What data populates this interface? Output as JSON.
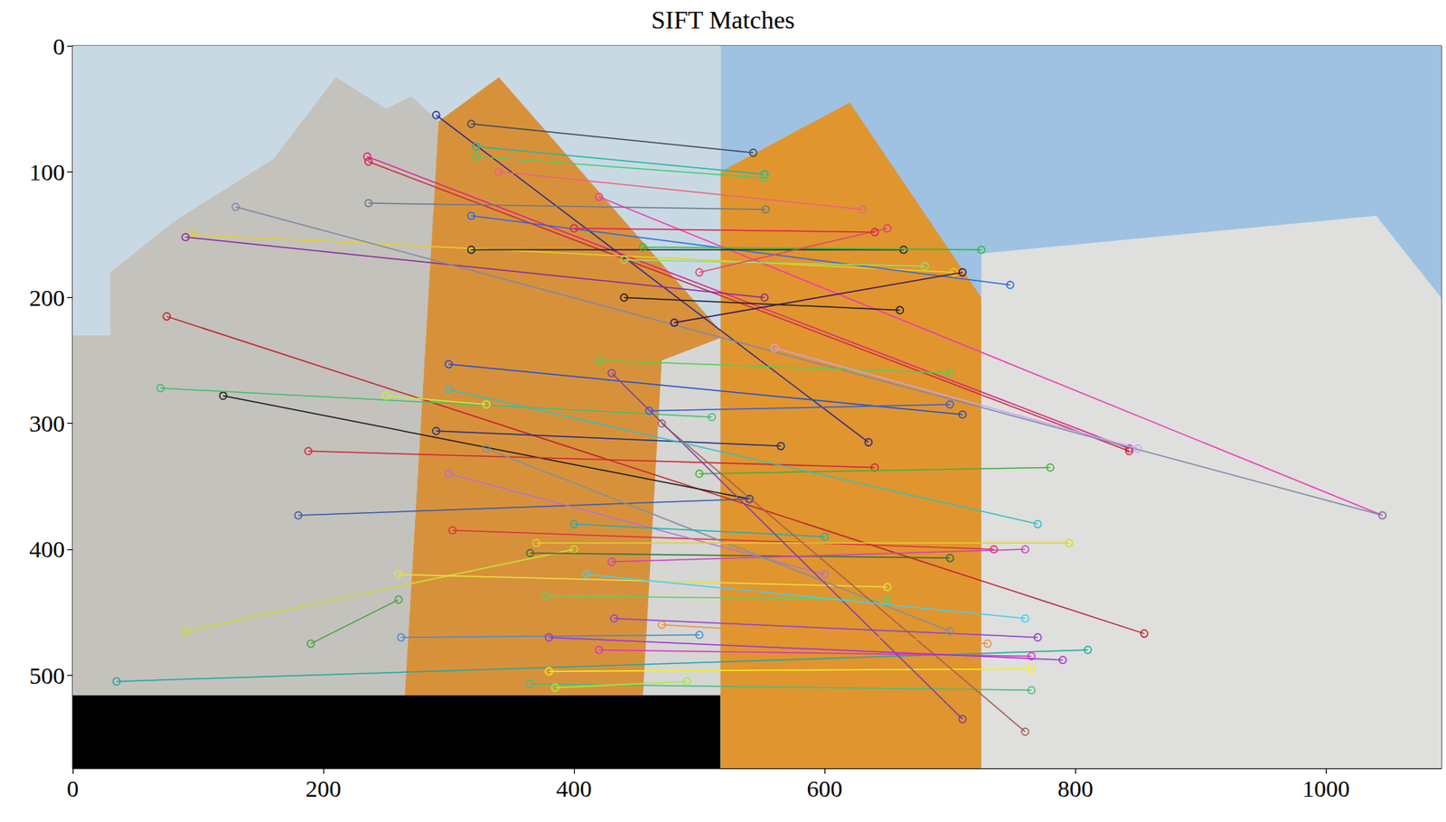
{
  "chart_data": {
    "type": "image_matches",
    "title": "SIFT Matches",
    "xlim": [
      0,
      1092
    ],
    "ylim": [
      574,
      0
    ],
    "xticks": [
      0,
      200,
      400,
      600,
      800,
      1000
    ],
    "yticks": [
      0,
      100,
      200,
      300,
      400,
      500
    ],
    "grid": false,
    "marker": "circle",
    "regions": [
      {
        "color": "#c9d9e4",
        "points": [
          [
            0,
            0
          ],
          [
            517,
            0
          ],
          [
            517,
            516
          ],
          [
            0,
            516
          ]
        ]
      },
      {
        "color": "#c4c2bc",
        "points": [
          [
            0,
            230
          ],
          [
            30,
            230
          ],
          [
            30,
            180
          ],
          [
            80,
            140
          ],
          [
            160,
            90
          ],
          [
            210,
            25
          ],
          [
            250,
            50
          ],
          [
            270,
            40
          ],
          [
            292,
            60
          ],
          [
            265,
            516
          ],
          [
            0,
            516
          ]
        ]
      },
      {
        "color": "#d8913b",
        "points": [
          [
            265,
            516
          ],
          [
            292,
            60
          ],
          [
            340,
            25
          ],
          [
            520,
            230
          ],
          [
            517,
            516
          ]
        ]
      },
      {
        "color": "#d6d6d4",
        "points": [
          [
            470,
            250
          ],
          [
            517,
            232
          ],
          [
            517,
            516
          ],
          [
            455,
            516
          ]
        ]
      },
      {
        "color": "#000000",
        "points": [
          [
            0,
            516
          ],
          [
            517,
            516
          ],
          [
            517,
            574
          ],
          [
            0,
            574
          ]
        ]
      },
      {
        "color": "#9fc2e2",
        "points": [
          [
            517,
            0
          ],
          [
            1092,
            0
          ],
          [
            1092,
            574
          ],
          [
            517,
            574
          ]
        ]
      },
      {
        "color": "#e0952f",
        "points": [
          [
            517,
            100
          ],
          [
            620,
            45
          ],
          [
            725,
            200
          ],
          [
            725,
            574
          ],
          [
            517,
            574
          ]
        ]
      },
      {
        "color": "#dfdfdd",
        "points": [
          [
            725,
            165
          ],
          [
            1040,
            135
          ],
          [
            1092,
            200
          ],
          [
            1092,
            574
          ],
          [
            725,
            574
          ]
        ]
      }
    ],
    "matches": [
      {
        "x": [
          318,
          543
        ],
        "y": [
          62,
          85
        ],
        "color": "#3d4a5c"
      },
      {
        "x": [
          290,
          635
        ],
        "y": [
          55,
          315
        ],
        "color": "#2a2a8a"
      },
      {
        "x": [
          322,
          552
        ],
        "y": [
          80,
          102
        ],
        "color": "#1fb8a0"
      },
      {
        "x": [
          322,
          552
        ],
        "y": [
          88,
          105
        ],
        "color": "#3fd06a"
      },
      {
        "x": [
          235,
          843
        ],
        "y": [
          88,
          320
        ],
        "color": "#e0208a"
      },
      {
        "x": [
          236,
          843
        ],
        "y": [
          92,
          322
        ],
        "color": "#c8283a"
      },
      {
        "x": [
          236,
          553
        ],
        "y": [
          125,
          130
        ],
        "color": "#6a7a8a"
      },
      {
        "x": [
          95,
          703
        ],
        "y": [
          150,
          180
        ],
        "color": "#e8d020"
      },
      {
        "x": [
          90,
          552
        ],
        "y": [
          152,
          200
        ],
        "color": "#8a2aa0"
      },
      {
        "x": [
          420,
          1045
        ],
        "y": [
          120,
          373
        ],
        "color": "#f03ab0"
      },
      {
        "x": [
          130,
          1045
        ],
        "y": [
          128,
          373
        ],
        "color": "#7a8aa8"
      },
      {
        "x": [
          318,
          748
        ],
        "y": [
          135,
          190
        ],
        "color": "#2a6ae0"
      },
      {
        "x": [
          318,
          663
        ],
        "y": [
          162,
          162
        ],
        "color": "#1a2a2a"
      },
      {
        "x": [
          75,
          855
        ],
        "y": [
          215,
          467
        ],
        "color": "#c02030"
      },
      {
        "x": [
          120,
          540
        ],
        "y": [
          278,
          360
        ],
        "color": "#1a1a1a"
      },
      {
        "x": [
          70,
          510
        ],
        "y": [
          272,
          295
        ],
        "color": "#40c070"
      },
      {
        "x": [
          188,
          640
        ],
        "y": [
          322,
          335
        ],
        "color": "#d02838"
      },
      {
        "x": [
          180,
          540
        ],
        "y": [
          373,
          360
        ],
        "color": "#3a5ab0"
      },
      {
        "x": [
          90,
          400
        ],
        "y": [
          465,
          400
        ],
        "color": "#c8e030"
      },
      {
        "x": [
          35,
          810
        ],
        "y": [
          505,
          480
        ],
        "color": "#20a8a0"
      },
      {
        "x": [
          190,
          260
        ],
        "y": [
          475,
          440
        ],
        "color": "#50a050"
      },
      {
        "x": [
          300,
          710
        ],
        "y": [
          253,
          293
        ],
        "color": "#2050d0"
      },
      {
        "x": [
          290,
          565
        ],
        "y": [
          306,
          318
        ],
        "color": "#203080"
      },
      {
        "x": [
          303,
          735
        ],
        "y": [
          385,
          400
        ],
        "color": "#e03040"
      },
      {
        "x": [
          260,
          650
        ],
        "y": [
          420,
          430
        ],
        "color": "#e8e040"
      },
      {
        "x": [
          262,
          500
        ],
        "y": [
          470,
          468
        ],
        "color": "#4a8ad0"
      },
      {
        "x": [
          365,
          700
        ],
        "y": [
          403,
          407
        ],
        "color": "#307040"
      },
      {
        "x": [
          378,
          650
        ],
        "y": [
          437,
          440
        ],
        "color": "#60d060"
      },
      {
        "x": [
          380,
          765
        ],
        "y": [
          497,
          495
        ],
        "color": "#f0f020"
      },
      {
        "x": [
          365,
          765
        ],
        "y": [
          507,
          512
        ],
        "color": "#40c080"
      },
      {
        "x": [
          385,
          490
        ],
        "y": [
          510,
          505
        ],
        "color": "#a0f040"
      },
      {
        "x": [
          430,
          760
        ],
        "y": [
          410,
          400
        ],
        "color": "#d040c0"
      },
      {
        "x": [
          432,
          770
        ],
        "y": [
          455,
          470
        ],
        "color": "#9040d0"
      },
      {
        "x": [
          300,
          600
        ],
        "y": [
          340,
          420
        ],
        "color": "#b070e0"
      },
      {
        "x": [
          440,
          660
        ],
        "y": [
          200,
          210
        ],
        "color": "#202020"
      },
      {
        "x": [
          480,
          710
        ],
        "y": [
          220,
          180
        ],
        "color": "#301060"
      },
      {
        "x": [
          455,
          725
        ],
        "y": [
          160,
          162
        ],
        "color": "#20c040"
      },
      {
        "x": [
          440,
          680
        ],
        "y": [
          170,
          175
        ],
        "color": "#90e070"
      },
      {
        "x": [
          500,
          650
        ],
        "y": [
          180,
          145
        ],
        "color": "#e04070"
      },
      {
        "x": [
          460,
          700
        ],
        "y": [
          290,
          285
        ],
        "color": "#3060e0"
      },
      {
        "x": [
          420,
          700
        ],
        "y": [
          250,
          260
        ],
        "color": "#50d050"
      },
      {
        "x": [
          330,
          700
        ],
        "y": [
          320,
          465
        ],
        "color": "#8090a0"
      },
      {
        "x": [
          400,
          600
        ],
        "y": [
          380,
          390
        ],
        "color": "#20b0b0"
      },
      {
        "x": [
          420,
          765
        ],
        "y": [
          480,
          485
        ],
        "color": "#e030c0"
      },
      {
        "x": [
          500,
          780
        ],
        "y": [
          340,
          335
        ],
        "color": "#40b040"
      },
      {
        "x": [
          370,
          795
        ],
        "y": [
          395,
          395
        ],
        "color": "#e0d030"
      },
      {
        "x": [
          470,
          760
        ],
        "y": [
          300,
          545
        ],
        "color": "#a06050"
      },
      {
        "x": [
          430,
          710
        ],
        "y": [
          260,
          535
        ],
        "color": "#8040a0"
      },
      {
        "x": [
          300,
          770
        ],
        "y": [
          273,
          380
        ],
        "color": "#30c0c0"
      },
      {
        "x": [
          250,
          330
        ],
        "y": [
          278,
          285
        ],
        "color": "#c0f040"
      },
      {
        "x": [
          410,
          760
        ],
        "y": [
          420,
          455
        ],
        "color": "#40d0f0"
      },
      {
        "x": [
          470,
          730
        ],
        "y": [
          460,
          475
        ],
        "color": "#f09040"
      },
      {
        "x": [
          380,
          790
        ],
        "y": [
          470,
          488
        ],
        "color": "#a030e0"
      },
      {
        "x": [
          560,
          850
        ],
        "y": [
          240,
          320
        ],
        "color": "#d0a0f0"
      },
      {
        "x": [
          340,
          630
        ],
        "y": [
          100,
          130
        ],
        "color": "#f06080"
      },
      {
        "x": [
          400,
          640
        ],
        "y": [
          145,
          148
        ],
        "color": "#e02050"
      }
    ]
  }
}
